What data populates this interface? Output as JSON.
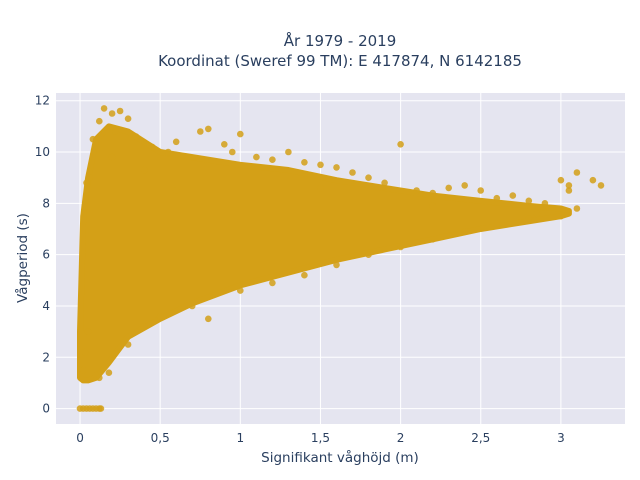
{
  "chart_data": {
    "type": "scatter",
    "title": "År 1979 - 2019",
    "subtitle": "Koordinat (Sweref 99 TM): E 417874, N 6142185",
    "xlabel": "Signifikant våghöjd (m)",
    "ylabel": "Vågperiod (s)",
    "xlim": [
      -0.15,
      3.4
    ],
    "ylim": [
      -0.6,
      12.3
    ],
    "xticks": [
      0,
      0.5,
      1,
      1.5,
      2,
      2.5,
      3
    ],
    "xtick_labels": [
      "0",
      "0,5",
      "1",
      "1,5",
      "2",
      "2,5",
      "3"
    ],
    "yticks": [
      0,
      2,
      4,
      6,
      8,
      10,
      12
    ],
    "ytick_labels": [
      "0",
      "2",
      "4",
      "6",
      "8",
      "10",
      "12"
    ],
    "grid": true,
    "colors": {
      "marker": "#d4a017",
      "plot_bg": "#e5e5f0",
      "grid": "#ffffff",
      "text": "#2a3f5f"
    },
    "series": [
      {
        "values": [
          [
            0.0,
            0
          ],
          [
            0.02,
            0
          ],
          [
            0.04,
            0
          ],
          [
            0.06,
            0
          ],
          [
            0.08,
            0
          ],
          [
            0.1,
            0
          ],
          [
            0.12,
            0
          ],
          [
            0.13,
            0
          ],
          [
            0.02,
            1.5
          ],
          [
            0.03,
            2.2
          ],
          [
            0.05,
            3.0
          ],
          [
            0.04,
            8.8
          ],
          [
            0.06,
            9.0
          ],
          [
            0.1,
            1.3
          ],
          [
            0.12,
            1.2
          ],
          [
            0.18,
            1.4
          ],
          [
            0.08,
            10.5
          ],
          [
            0.12,
            11.2
          ],
          [
            0.15,
            11.7
          ],
          [
            0.2,
            11.5
          ],
          [
            0.25,
            11.6
          ],
          [
            0.3,
            11.3
          ],
          [
            0.22,
            10.8
          ],
          [
            0.35,
            10.6
          ],
          [
            0.45,
            10.2
          ],
          [
            0.55,
            10.0
          ],
          [
            0.6,
            10.4
          ],
          [
            0.75,
            10.8
          ],
          [
            0.8,
            10.9
          ],
          [
            0.9,
            10.3
          ],
          [
            0.95,
            10.0
          ],
          [
            1.0,
            10.7
          ],
          [
            1.1,
            9.8
          ],
          [
            1.2,
            9.7
          ],
          [
            1.3,
            10.0
          ],
          [
            1.4,
            9.6
          ],
          [
            1.5,
            9.5
          ],
          [
            1.6,
            9.4
          ],
          [
            1.7,
            9.2
          ],
          [
            1.8,
            9.0
          ],
          [
            1.9,
            8.8
          ],
          [
            2.0,
            10.3
          ],
          [
            2.1,
            8.5
          ],
          [
            2.2,
            8.4
          ],
          [
            2.3,
            8.6
          ],
          [
            2.4,
            8.7
          ],
          [
            2.5,
            8.5
          ],
          [
            2.6,
            8.2
          ],
          [
            2.7,
            8.3
          ],
          [
            2.8,
            8.1
          ],
          [
            2.85,
            7.6
          ],
          [
            2.9,
            8.0
          ],
          [
            3.0,
            8.9
          ],
          [
            3.05,
            8.5
          ],
          [
            3.1,
            9.2
          ],
          [
            3.2,
            8.9
          ],
          [
            3.25,
            8.7
          ],
          [
            3.1,
            7.8
          ],
          [
            3.05,
            8.7
          ],
          [
            0.3,
            2.5
          ],
          [
            0.4,
            3.2
          ],
          [
            0.5,
            3.6
          ],
          [
            0.7,
            4.0
          ],
          [
            0.8,
            3.5
          ],
          [
            1.0,
            4.6
          ],
          [
            1.2,
            4.9
          ],
          [
            1.4,
            5.2
          ],
          [
            1.6,
            5.6
          ],
          [
            1.8,
            6.0
          ],
          [
            2.0,
            6.3
          ],
          [
            2.2,
            6.6
          ],
          [
            2.4,
            6.9
          ],
          [
            2.6,
            7.2
          ],
          [
            2.8,
            7.4
          ],
          [
            3.0,
            7.5
          ],
          [
            0.6,
            8.5
          ],
          [
            0.4,
            9.3
          ],
          [
            0.2,
            9.8
          ],
          [
            1.5,
            8.6
          ],
          [
            2.2,
            7.9
          ]
        ]
      }
    ],
    "density_bands": [
      {
        "x": [
          0.0,
          0.02,
          0.05,
          0.1,
          0.18,
          0.3,
          0.5,
          0.7,
          1.0,
          1.3,
          1.6,
          1.9,
          2.2,
          2.5,
          2.8,
          3.0,
          3.05
        ],
        "ymin": [
          1.2,
          1.1,
          1.1,
          1.2,
          1.8,
          2.8,
          3.5,
          4.1,
          4.8,
          5.3,
          5.8,
          6.2,
          6.6,
          7.0,
          7.3,
          7.5,
          7.6
        ],
        "ymax": [
          3.0,
          7.5,
          9.0,
          10.5,
          11.0,
          10.8,
          10.0,
          9.8,
          9.5,
          9.3,
          8.9,
          8.6,
          8.3,
          8.1,
          7.9,
          7.8,
          7.7
        ]
      }
    ]
  }
}
